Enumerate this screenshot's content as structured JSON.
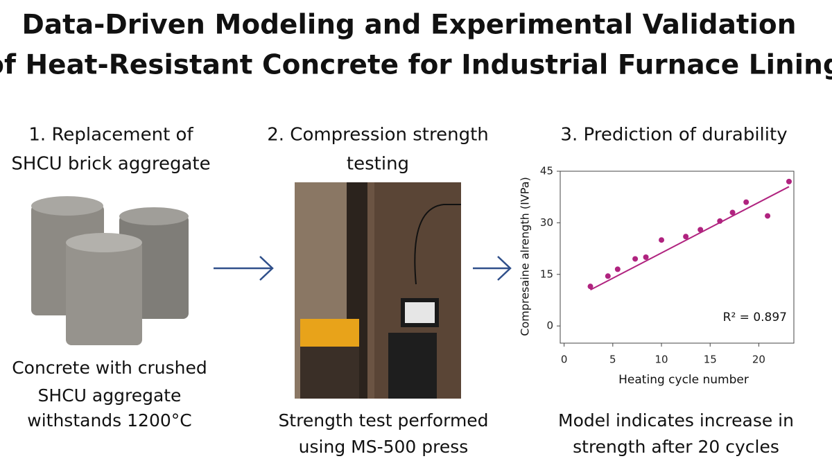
{
  "title": [
    "Data-Driven Modeling and Experimental Validation",
    "of Heat-Resistant Concrete for Industrial Furnace Lining"
  ],
  "panels": [
    {
      "heading": [
        "1. Replacement of",
        "SHCU brick aggregate"
      ],
      "caption": [
        "Concrete with crushed",
        "SHCU aggregate",
        "withstands 1200°C"
      ]
    },
    {
      "heading": [
        "2. Compression strength",
        "testing"
      ],
      "caption": [
        "Strength test performed",
        "using MS-500 press"
      ]
    },
    {
      "heading": [
        "3. Prediction of durability"
      ],
      "caption": [
        "Model indicates increase in",
        "strength after 20 cycles"
      ]
    }
  ],
  "chart_data": {
    "type": "scatter",
    "x_label": "Heating cycle number",
    "y_label": "Compresaine alrength (IVPa)",
    "x": [
      2.7,
      4.5,
      5.5,
      7.3,
      8.4,
      10,
      12.5,
      14,
      16,
      17.3,
      18.7,
      20.9,
      23.1
    ],
    "values": [
      11.5,
      14.5,
      16.5,
      19.5,
      20,
      25,
      26,
      28,
      30.5,
      33,
      36,
      32,
      42
    ],
    "color": "#b0237f",
    "fit": {
      "x": [
        2.7,
        23.1
      ],
      "y": [
        10.5,
        40.5
      ]
    },
    "annotation": "R² = 0.897",
    "xlim": [
      -0.4,
      23.6
    ],
    "ylim": [
      -5,
      45
    ],
    "xticks": [
      0,
      5,
      10,
      15,
      20
    ],
    "yticks": [
      0,
      15,
      30,
      45
    ]
  }
}
